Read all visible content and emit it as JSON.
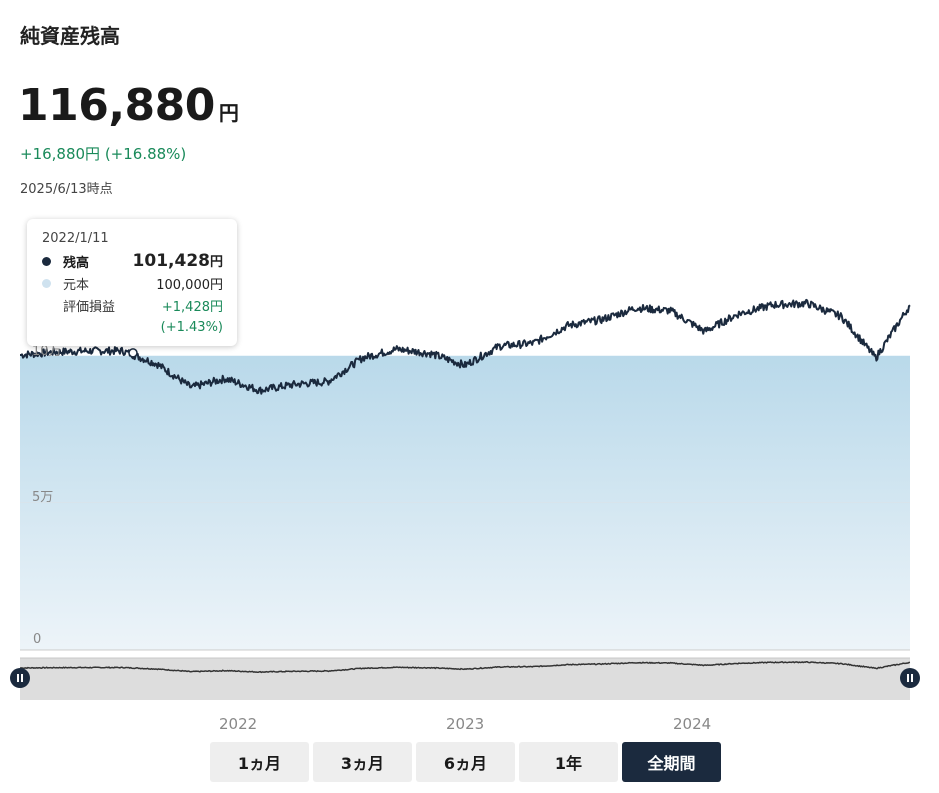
{
  "header": {
    "title": "純資産残高",
    "balance": "116,880",
    "balance_unit": "円",
    "gain": "+16,880円 (+16.88%)",
    "as_of": "2025/6/13時点"
  },
  "tooltip": {
    "date": "2022/1/11",
    "balance_label": "残高",
    "balance_value": "101,428",
    "balance_unit": "円",
    "principal_label": "元本",
    "principal_value": "100,000円",
    "pl_label": "評価損益",
    "pl_value": "+1,428円",
    "pl_percent": "(+1.43%)"
  },
  "chart_data": {
    "type": "line",
    "y_ticks": [
      "10万",
      "5万",
      "0"
    ],
    "x_ticks": [
      "2022",
      "2023",
      "2024"
    ],
    "ylim": [
      0,
      110000
    ],
    "principal": 100000,
    "series": [
      {
        "name": "残高",
        "x": [
          "2021/6",
          "2021/9",
          "2021/12",
          "2022/1",
          "2022/3",
          "2022/6",
          "2022/9",
          "2022/10",
          "2022/12",
          "2023/1",
          "2023/3",
          "2023/5",
          "2023/7",
          "2023/9",
          "2023/10",
          "2023/12",
          "2024/3",
          "2024/4",
          "2024/5",
          "2024/7",
          "2024/8",
          "2024/9",
          "2024/11",
          "2025/1",
          "2025/3",
          "2025/4",
          "2025/6"
        ],
        "values": [
          100000,
          101000,
          101400,
          101400,
          97000,
          89000,
          92000,
          88000,
          90000,
          91000,
          99000,
          102000,
          100500,
          96500,
          103000,
          104000,
          110000,
          112000,
          116000,
          115000,
          108000,
          114000,
          117000,
          117500,
          113000,
          99000,
          116880
        ]
      },
      {
        "name": "元本",
        "values": [
          100000,
          100000
        ]
      }
    ]
  },
  "range_buttons": [
    {
      "label": "1ヵ月",
      "active": false
    },
    {
      "label": "3ヵ月",
      "active": false
    },
    {
      "label": "6ヵ月",
      "active": false
    },
    {
      "label": "1年",
      "active": false
    },
    {
      "label": "全期間",
      "active": true
    }
  ],
  "colors": {
    "line": "#1b2a3e",
    "area_top": "#b9d9ea",
    "area_bottom": "#edf4f9",
    "gain": "#1a8a5a"
  }
}
